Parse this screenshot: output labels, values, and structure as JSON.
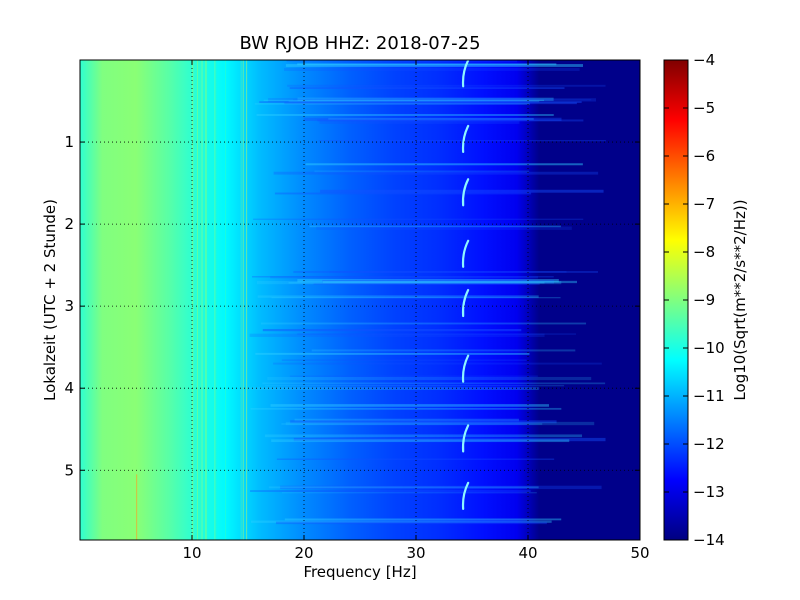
{
  "chart_data": {
    "type": "heatmap",
    "title": "BW RJOB HHZ: 2018-07-25",
    "xlabel": "Frequency [Hz]",
    "ylabel": "Lokalzeit (UTC + 2 Stunde)",
    "xlim": [
      0,
      50
    ],
    "ylim": [
      5.85,
      0.0
    ],
    "xticks": [
      10,
      20,
      30,
      40,
      50
    ],
    "xtick_labels": [
      "10",
      "20",
      "30",
      "40",
      "50"
    ],
    "yticks": [
      1,
      2,
      3,
      4,
      5
    ],
    "ytick_labels": [
      "1",
      "2",
      "3",
      "4",
      "5"
    ],
    "grid": true,
    "colormap": "jet",
    "colorbar": {
      "label": "Log10(Sqrt(m**2/s**2/Hz))",
      "min": -14,
      "max": -4,
      "ticks": [
        -4,
        -5,
        -6,
        -7,
        -8,
        -9,
        -10,
        -11,
        -12,
        -13,
        -14
      ],
      "tick_labels": [
        "−4",
        "−5",
        "−6",
        "−7",
        "−8",
        "−9",
        "−10",
        "−11",
        "−12",
        "−13",
        "−14"
      ]
    },
    "spectrum_profile": {
      "frequency_hz": [
        0,
        2,
        5,
        8,
        10,
        13,
        16,
        20,
        24,
        28,
        32,
        36,
        39,
        40,
        41,
        50
      ],
      "log10_amplitude": [
        -9.8,
        -9.0,
        -8.9,
        -9.4,
        -9.8,
        -10.3,
        -10.9,
        -11.4,
        -11.8,
        -12.1,
        -12.3,
        -12.6,
        -12.9,
        -13.4,
        -13.9,
        -13.9
      ]
    },
    "annotations": [
      {
        "feature": "arc artifacts near 34 Hz",
        "frequency_hz": 34.3,
        "times": [
          0.15,
          0.95,
          1.6,
          2.35,
          2.95,
          3.75,
          4.6,
          5.3
        ]
      }
    ]
  }
}
